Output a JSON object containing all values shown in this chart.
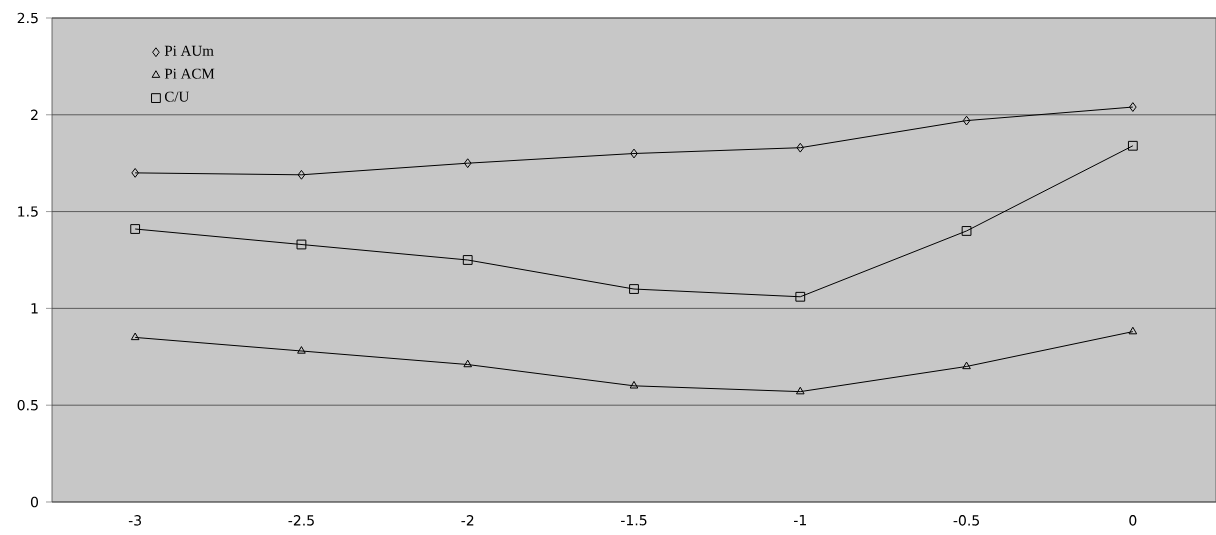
{
  "chart_data": {
    "type": "line",
    "categories": [
      "-3",
      "-2.5",
      "-2",
      "-1.5",
      "-1",
      "-0.5",
      "0"
    ],
    "series": [
      {
        "name": "Pi AUm",
        "color": "#000000",
        "marker": "diamond",
        "values": [
          1.7,
          1.69,
          1.75,
          1.8,
          1.83,
          1.97,
          2.04
        ]
      },
      {
        "name": "Pi ACM",
        "color": "#000000",
        "marker": "triangle",
        "values": [
          0.85,
          0.78,
          0.71,
          0.6,
          0.57,
          0.7,
          0.88
        ]
      },
      {
        "name": "C/U",
        "color": "#000000",
        "marker": "square",
        "values": [
          1.41,
          1.33,
          1.25,
          1.1,
          1.06,
          1.4,
          1.84
        ]
      }
    ],
    "ylim": [
      0,
      2.5
    ],
    "yticks": [
      0,
      0.5,
      1,
      1.5,
      2,
      2.5
    ],
    "grid": "y",
    "legend": "top left",
    "line_style": "solid"
  }
}
